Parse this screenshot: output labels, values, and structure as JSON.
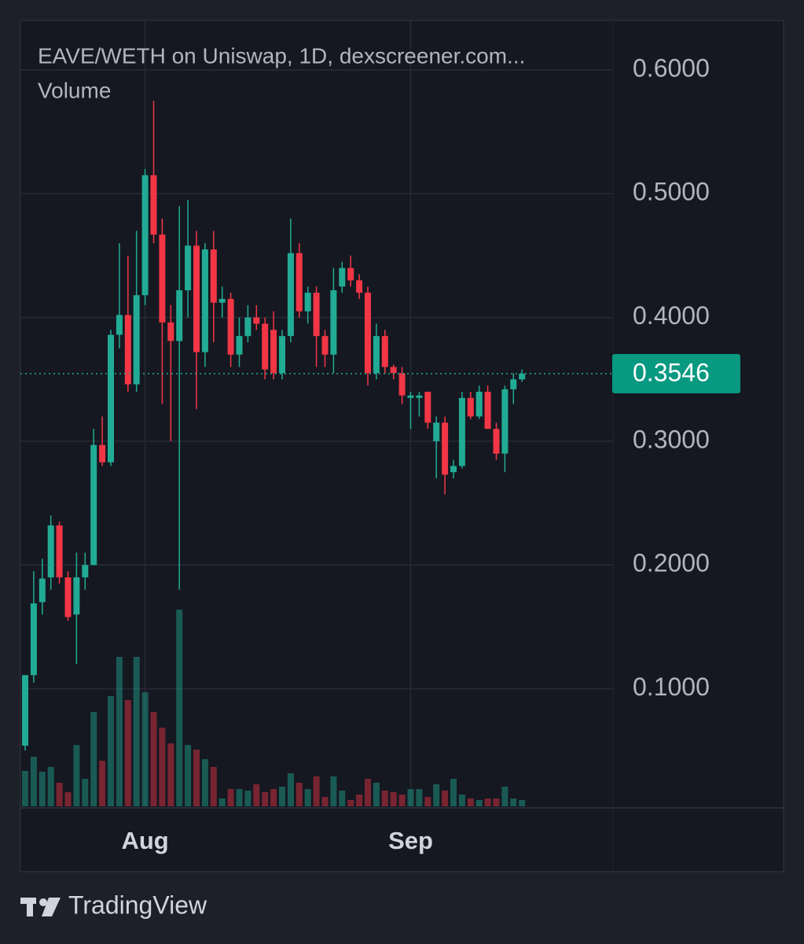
{
  "chart_data": {
    "type": "candlestick",
    "title": "EAVE/WETH on Uniswap, 1D, dexscreener.com...",
    "volume_label": "Volume",
    "footer": "TradingView",
    "categories": [
      null,
      null,
      null,
      null,
      null,
      null,
      null,
      null,
      null,
      null,
      null,
      null,
      null,
      null,
      "Aug",
      null,
      null,
      null,
      null,
      null,
      null,
      null,
      null,
      null,
      null,
      null,
      null,
      null,
      null,
      null,
      null,
      null,
      null,
      null,
      null,
      null,
      null,
      null,
      null,
      null,
      null,
      null,
      null,
      null,
      null,
      "Sep",
      null,
      null,
      null,
      null,
      null,
      null,
      null,
      null,
      null,
      null,
      null,
      null,
      null
    ],
    "open": [
      0.054,
      0.111,
      0.17,
      0.19,
      0.232,
      0.19,
      0.16,
      0.19,
      0.2,
      0.297,
      0.283,
      0.386,
      0.402,
      0.346,
      0.418,
      0.515,
      0.467,
      0.396,
      0.381,
      0.422,
      0.458,
      0.372,
      0.455,
      0.412,
      0.415,
      0.37,
      0.385,
      0.4,
      0.395,
      0.39,
      0.355,
      0.385,
      0.452,
      0.405,
      0.42,
      0.385,
      0.37,
      0.425,
      0.44,
      0.43,
      0.42,
      0.355,
      0.385,
      0.36,
      0.355,
      0.335,
      0.335,
      0.34,
      0.3,
      0.315,
      0.275,
      0.28,
      0.335,
      0.32,
      0.34,
      0.31,
      0.29,
      0.342,
      0.35
    ],
    "high": [
      0.111,
      0.195,
      0.205,
      0.24,
      0.235,
      0.195,
      0.21,
      0.21,
      0.31,
      0.32,
      0.39,
      0.46,
      0.45,
      0.47,
      0.52,
      0.575,
      0.48,
      0.41,
      0.49,
      0.495,
      0.47,
      0.46,
      0.47,
      0.425,
      0.42,
      0.4,
      0.41,
      0.41,
      0.4,
      0.405,
      0.39,
      0.48,
      0.46,
      0.425,
      0.425,
      0.39,
      0.44,
      0.445,
      0.45,
      0.435,
      0.425,
      0.395,
      0.39,
      0.362,
      0.36,
      0.34,
      0.34,
      0.34,
      0.32,
      0.32,
      0.285,
      0.34,
      0.34,
      0.345,
      0.345,
      0.315,
      0.345,
      0.355,
      0.358
    ],
    "low": [
      0.05,
      0.105,
      0.16,
      0.18,
      0.185,
      0.155,
      0.12,
      0.18,
      0.2,
      0.28,
      0.28,
      0.375,
      0.34,
      0.34,
      0.41,
      0.46,
      0.33,
      0.3,
      0.18,
      0.4,
      0.326,
      0.36,
      0.38,
      0.4,
      0.36,
      0.36,
      0.38,
      0.39,
      0.35,
      0.35,
      0.35,
      0.38,
      0.4,
      0.395,
      0.36,
      0.36,
      0.355,
      0.42,
      0.425,
      0.415,
      0.345,
      0.35,
      0.355,
      0.35,
      0.33,
      0.31,
      0.32,
      0.31,
      0.27,
      0.257,
      0.27,
      0.278,
      0.318,
      0.318,
      0.31,
      0.285,
      0.275,
      0.33,
      0.348
    ],
    "close": [
      0.111,
      0.169,
      0.189,
      0.232,
      0.19,
      0.158,
      0.19,
      0.2,
      0.297,
      0.283,
      0.386,
      0.402,
      0.346,
      0.418,
      0.515,
      0.467,
      0.396,
      0.381,
      0.422,
      0.458,
      0.372,
      0.455,
      0.412,
      0.415,
      0.37,
      0.385,
      0.4,
      0.395,
      0.358,
      0.355,
      0.385,
      0.452,
      0.405,
      0.42,
      0.385,
      0.37,
      0.422,
      0.44,
      0.43,
      0.42,
      0.355,
      0.385,
      0.36,
      0.355,
      0.337,
      0.337,
      0.337,
      0.315,
      0.315,
      0.273,
      0.28,
      0.335,
      0.32,
      0.34,
      0.31,
      0.29,
      0.342,
      0.35,
      0.3546
    ],
    "volume": [
      45,
      63,
      44,
      50,
      30,
      18,
      78,
      35,
      120,
      58,
      140,
      190,
      135,
      190,
      145,
      120,
      100,
      80,
      250,
      78,
      72,
      60,
      50,
      10,
      22,
      22,
      20,
      28,
      18,
      22,
      25,
      42,
      30,
      22,
      38,
      12,
      38,
      20,
      8,
      15,
      35,
      30,
      20,
      18,
      15,
      22,
      22,
      12,
      28,
      20,
      35,
      15,
      10,
      8,
      10,
      10,
      25,
      10,
      8
    ],
    "volume_ylim": [
      0,
      300
    ],
    "up_color": "#22ab94",
    "down_color": "#f23645",
    "ylim": [
      0.005,
      0.64
    ],
    "yticks": [
      {
        "value": 0.1,
        "label": "0.1000"
      },
      {
        "value": 0.2,
        "label": "0.2000"
      },
      {
        "value": 0.3,
        "label": "0.3000"
      },
      {
        "value": 0.4,
        "label": "0.4000"
      },
      {
        "value": 0.5,
        "label": "0.5000"
      },
      {
        "value": 0.6,
        "label": "0.6000"
      }
    ],
    "last_price": 0.3546,
    "grid": true
  }
}
